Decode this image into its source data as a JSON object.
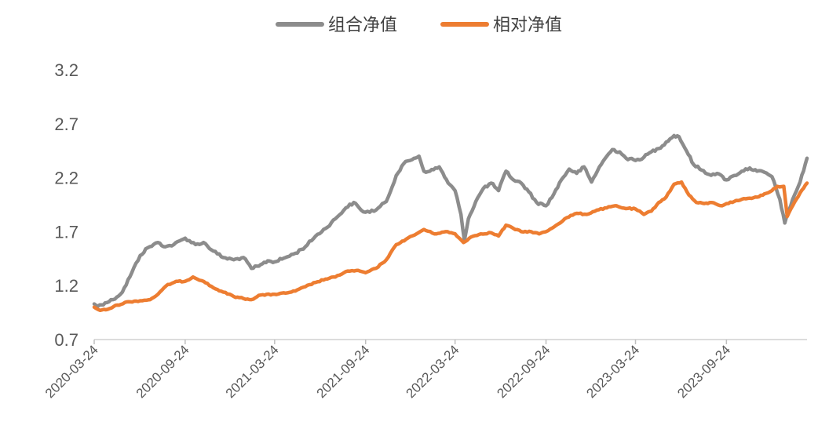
{
  "chart_data": {
    "type": "line",
    "series": [
      {
        "name": "组合净值",
        "color": "#8c8c8c",
        "points": [
          [
            "2020-03-24",
            1.03
          ],
          [
            "2020-04-01",
            1.01
          ],
          [
            "2020-04-15",
            1.04
          ],
          [
            "2020-05-01",
            1.07
          ],
          [
            "2020-05-20",
            1.14
          ],
          [
            "2020-06-08",
            1.32
          ],
          [
            "2020-06-25",
            1.48
          ],
          [
            "2020-07-10",
            1.55
          ],
          [
            "2020-07-31",
            1.6
          ],
          [
            "2020-08-15",
            1.56
          ],
          [
            "2020-09-01",
            1.58
          ],
          [
            "2020-09-24",
            1.64
          ],
          [
            "2020-10-15",
            1.58
          ],
          [
            "2020-10-31",
            1.6
          ],
          [
            "2020-11-20",
            1.52
          ],
          [
            "2020-12-10",
            1.46
          ],
          [
            "2020-12-31",
            1.44
          ],
          [
            "2021-01-20",
            1.46
          ],
          [
            "2021-02-05",
            1.36
          ],
          [
            "2021-02-20",
            1.38
          ],
          [
            "2021-03-10",
            1.43
          ],
          [
            "2021-03-24",
            1.42
          ],
          [
            "2021-04-15",
            1.46
          ],
          [
            "2021-05-05",
            1.5
          ],
          [
            "2021-05-25",
            1.56
          ],
          [
            "2021-06-15",
            1.66
          ],
          [
            "2021-07-05",
            1.73
          ],
          [
            "2021-07-25",
            1.82
          ],
          [
            "2021-08-15",
            1.92
          ],
          [
            "2021-08-31",
            1.97
          ],
          [
            "2021-09-15",
            1.9
          ],
          [
            "2021-09-24",
            1.88
          ],
          [
            "2021-10-15",
            1.9
          ],
          [
            "2021-11-05",
            1.98
          ],
          [
            "2021-11-25",
            2.22
          ],
          [
            "2021-12-10",
            2.33
          ],
          [
            "2021-12-31",
            2.38
          ],
          [
            "2022-01-10",
            2.4
          ],
          [
            "2022-01-20",
            2.26
          ],
          [
            "2022-02-01",
            2.26
          ],
          [
            "2022-02-20",
            2.3
          ],
          [
            "2022-03-10",
            2.15
          ],
          [
            "2022-03-24",
            2.08
          ],
          [
            "2022-04-05",
            1.86
          ],
          [
            "2022-04-12",
            1.62
          ],
          [
            "2022-04-20",
            1.82
          ],
          [
            "2022-05-05",
            1.98
          ],
          [
            "2022-05-20",
            2.1
          ],
          [
            "2022-06-05",
            2.15
          ],
          [
            "2022-06-20",
            2.08
          ],
          [
            "2022-07-05",
            2.26
          ],
          [
            "2022-07-20",
            2.18
          ],
          [
            "2022-08-05",
            2.15
          ],
          [
            "2022-08-20",
            2.07
          ],
          [
            "2022-09-05",
            1.97
          ],
          [
            "2022-09-24",
            1.94
          ],
          [
            "2022-10-10",
            2.05
          ],
          [
            "2022-10-25",
            2.18
          ],
          [
            "2022-11-10",
            2.28
          ],
          [
            "2022-11-25",
            2.24
          ],
          [
            "2022-12-10",
            2.3
          ],
          [
            "2022-12-25",
            2.16
          ],
          [
            "2023-01-10",
            2.3
          ],
          [
            "2023-01-25",
            2.4
          ],
          [
            "2023-02-05",
            2.46
          ],
          [
            "2023-02-20",
            2.44
          ],
          [
            "2023-03-05",
            2.38
          ],
          [
            "2023-03-24",
            2.36
          ],
          [
            "2023-04-10",
            2.39
          ],
          [
            "2023-04-25",
            2.44
          ],
          [
            "2023-05-10",
            2.47
          ],
          [
            "2023-05-25",
            2.53
          ],
          [
            "2023-06-10",
            2.59
          ],
          [
            "2023-06-20",
            2.58
          ],
          [
            "2023-07-05",
            2.45
          ],
          [
            "2023-07-20",
            2.32
          ],
          [
            "2023-08-05",
            2.27
          ],
          [
            "2023-08-20",
            2.23
          ],
          [
            "2023-09-05",
            2.24
          ],
          [
            "2023-09-24",
            2.18
          ],
          [
            "2023-10-10",
            2.22
          ],
          [
            "2023-10-25",
            2.26
          ],
          [
            "2023-11-10",
            2.29
          ],
          [
            "2023-11-25",
            2.26
          ],
          [
            "2023-12-10",
            2.25
          ],
          [
            "2023-12-25",
            2.21
          ],
          [
            "2024-01-10",
            2.0
          ],
          [
            "2024-01-20",
            1.78
          ],
          [
            "2024-02-05",
            2.0
          ],
          [
            "2024-02-20",
            2.16
          ],
          [
            "2024-03-05",
            2.38
          ]
        ]
      },
      {
        "name": "相对净值",
        "color": "#ed7d31",
        "points": [
          [
            "2020-03-24",
            1.0
          ],
          [
            "2020-04-05",
            0.97
          ],
          [
            "2020-04-20",
            0.98
          ],
          [
            "2020-05-10",
            1.02
          ],
          [
            "2020-06-01",
            1.05
          ],
          [
            "2020-06-25",
            1.06
          ],
          [
            "2020-07-15",
            1.07
          ],
          [
            "2020-07-31",
            1.12
          ],
          [
            "2020-08-20",
            1.21
          ],
          [
            "2020-09-10",
            1.24
          ],
          [
            "2020-09-24",
            1.24
          ],
          [
            "2020-10-10",
            1.28
          ],
          [
            "2020-10-31",
            1.24
          ],
          [
            "2020-11-20",
            1.18
          ],
          [
            "2020-12-10",
            1.14
          ],
          [
            "2020-12-31",
            1.1
          ],
          [
            "2021-01-20",
            1.08
          ],
          [
            "2021-02-05",
            1.07
          ],
          [
            "2021-02-20",
            1.11
          ],
          [
            "2021-03-24",
            1.12
          ],
          [
            "2021-04-15",
            1.13
          ],
          [
            "2021-05-05",
            1.15
          ],
          [
            "2021-05-25",
            1.19
          ],
          [
            "2021-06-15",
            1.23
          ],
          [
            "2021-07-05",
            1.26
          ],
          [
            "2021-07-25",
            1.28
          ],
          [
            "2021-08-15",
            1.33
          ],
          [
            "2021-09-05",
            1.34
          ],
          [
            "2021-09-24",
            1.32
          ],
          [
            "2021-10-15",
            1.36
          ],
          [
            "2021-11-05",
            1.44
          ],
          [
            "2021-11-25",
            1.58
          ],
          [
            "2021-12-15",
            1.63
          ],
          [
            "2022-01-05",
            1.68
          ],
          [
            "2022-01-20",
            1.72
          ],
          [
            "2022-02-10",
            1.68
          ],
          [
            "2022-03-05",
            1.7
          ],
          [
            "2022-03-24",
            1.68
          ],
          [
            "2022-04-10",
            1.6
          ],
          [
            "2022-04-25",
            1.65
          ],
          [
            "2022-05-15",
            1.68
          ],
          [
            "2022-06-05",
            1.69
          ],
          [
            "2022-06-20",
            1.66
          ],
          [
            "2022-07-05",
            1.76
          ],
          [
            "2022-07-20",
            1.73
          ],
          [
            "2022-08-05",
            1.7
          ],
          [
            "2022-08-25",
            1.7
          ],
          [
            "2022-09-10",
            1.68
          ],
          [
            "2022-09-24",
            1.7
          ],
          [
            "2022-10-15",
            1.76
          ],
          [
            "2022-11-05",
            1.83
          ],
          [
            "2022-11-25",
            1.87
          ],
          [
            "2022-12-15",
            1.86
          ],
          [
            "2023-01-05",
            1.9
          ],
          [
            "2023-01-25",
            1.92
          ],
          [
            "2023-02-10",
            1.94
          ],
          [
            "2023-02-25",
            1.92
          ],
          [
            "2023-03-24",
            1.91
          ],
          [
            "2023-04-10",
            1.86
          ],
          [
            "2023-04-25",
            1.89
          ],
          [
            "2023-05-10",
            1.97
          ],
          [
            "2023-05-25",
            2.02
          ],
          [
            "2023-06-10",
            2.14
          ],
          [
            "2023-06-25",
            2.16
          ],
          [
            "2023-07-10",
            2.04
          ],
          [
            "2023-07-25",
            1.97
          ],
          [
            "2023-08-10",
            1.96
          ],
          [
            "2023-08-25",
            1.97
          ],
          [
            "2023-09-15",
            1.94
          ],
          [
            "2023-09-24",
            1.96
          ],
          [
            "2023-10-10",
            1.98
          ],
          [
            "2023-10-25",
            2.0
          ],
          [
            "2023-11-10",
            2.01
          ],
          [
            "2023-11-25",
            2.02
          ],
          [
            "2023-12-10",
            2.05
          ],
          [
            "2023-12-25",
            2.08
          ],
          [
            "2024-01-05",
            2.12
          ],
          [
            "2024-01-18",
            2.12
          ],
          [
            "2024-01-25",
            1.84
          ],
          [
            "2024-02-05",
            1.94
          ],
          [
            "2024-02-20",
            2.06
          ],
          [
            "2024-03-05",
            2.15
          ]
        ]
      }
    ],
    "y_ticks": [
      "0.7",
      "1.2",
      "1.7",
      "2.2",
      "2.7",
      "3.2"
    ],
    "ylim": [
      0.7,
      3.2
    ],
    "x_ticks": [
      "2020-03-24",
      "2020-09-24",
      "2021-03-24",
      "2021-09-24",
      "2022-03-24",
      "2022-09-24",
      "2023-03-24",
      "2023-09-24"
    ],
    "xlim": [
      "2020-03-24",
      "2024-03-05"
    ],
    "legend": {
      "position": "top-center",
      "items": [
        "组合净值",
        "相对净值"
      ]
    },
    "grid": false
  }
}
